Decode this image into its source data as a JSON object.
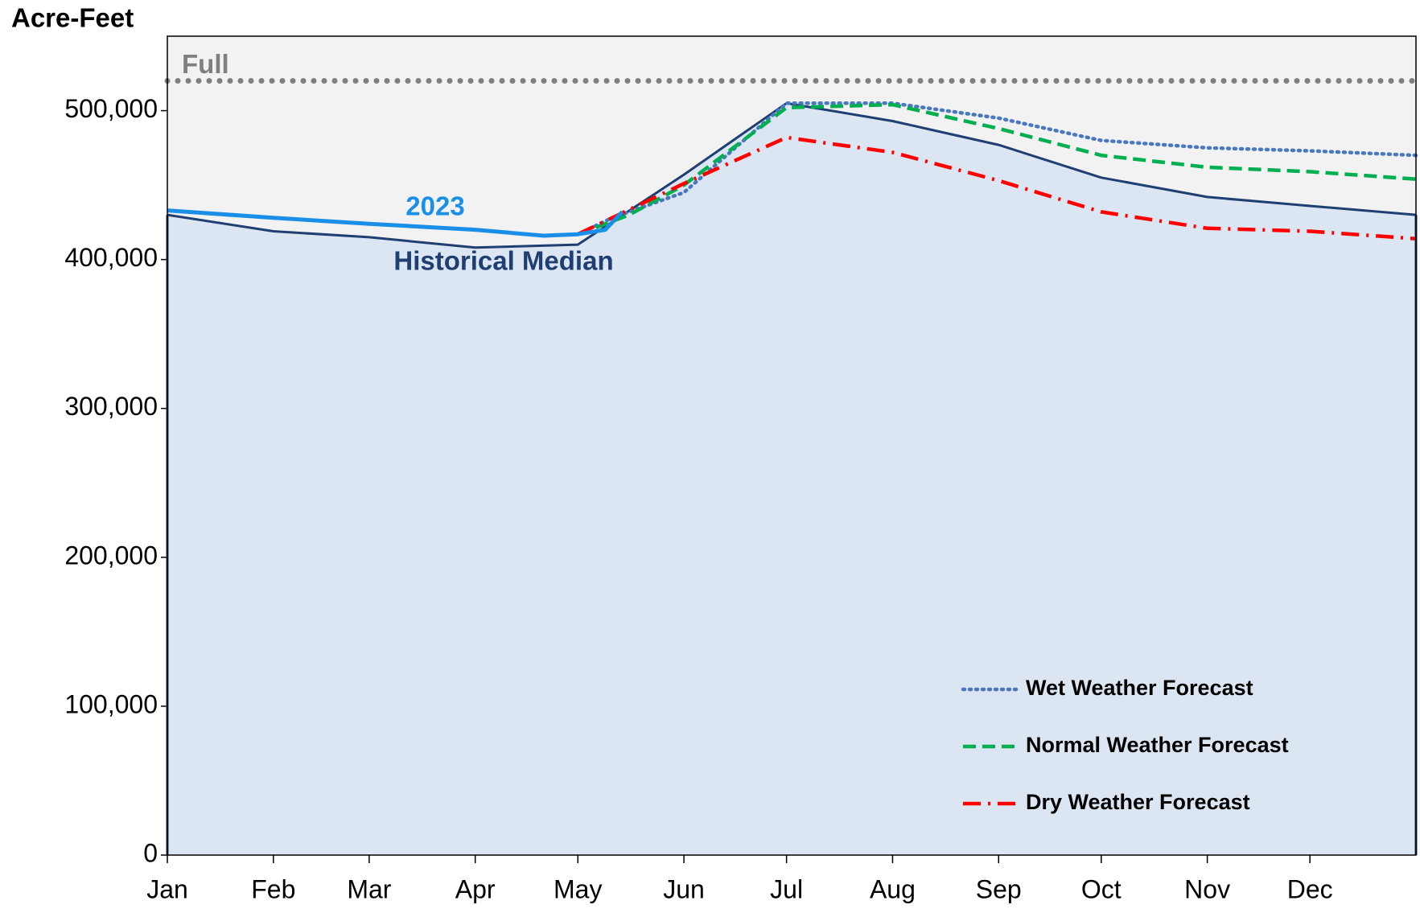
{
  "chart_data": {
    "type": "line",
    "y_label": "Acre-Feet",
    "xlim": [
      0,
      365
    ],
    "xticks": [
      {
        "value": 0,
        "label": "Jan"
      },
      {
        "value": 31,
        "label": "Feb"
      },
      {
        "value": 59,
        "label": "Mar"
      },
      {
        "value": 90,
        "label": "Apr"
      },
      {
        "value": 120,
        "label": "May"
      },
      {
        "value": 151,
        "label": "Jun"
      },
      {
        "value": 181,
        "label": "Jul"
      },
      {
        "value": 212,
        "label": "Aug"
      },
      {
        "value": 243,
        "label": "Sep"
      },
      {
        "value": 273,
        "label": "Oct"
      },
      {
        "value": 304,
        "label": "Nov"
      },
      {
        "value": 334,
        "label": "Dec"
      }
    ],
    "ylim": [
      0,
      550000
    ],
    "yticks": [
      0,
      {
        "value": 100000,
        "label": "100,000"
      },
      {
        "value": 200000,
        "label": "200,000"
      },
      {
        "value": 300000,
        "label": "300,000"
      },
      {
        "value": 400000,
        "label": "400,000"
      },
      {
        "value": 500000,
        "label": "500,000"
      }
    ],
    "plot_background": "#f2f2f2",
    "reference_line": {
      "name": "Full",
      "value": 520000,
      "color": "#7f7f7f"
    },
    "series": [
      {
        "name": "Historical Median",
        "color": "#1f3f73",
        "fill": "#dce6f2",
        "style": "solid",
        "x": [
          0,
          31,
          59,
          90,
          120,
          151,
          181,
          212,
          243,
          273,
          304,
          334,
          365
        ],
        "values": [
          430000,
          419000,
          415000,
          408000,
          410000,
          457000,
          505000,
          493000,
          477000,
          455000,
          442000,
          436000,
          430000
        ]
      },
      {
        "name": "2023",
        "color": "#1a8fe8",
        "style": "solid",
        "x": [
          0,
          31,
          59,
          90,
          110,
          120,
          128,
          133
        ],
        "values": [
          433000,
          428000,
          424000,
          420000,
          416000,
          417000,
          420000,
          432000
        ]
      },
      {
        "name": "Wet Weather Forecast",
        "color": "#4a78c0",
        "style": "dotted",
        "x": [
          120,
          130,
          151,
          181,
          212,
          243,
          273,
          304,
          334,
          365
        ],
        "values": [
          417000,
          428000,
          445000,
          505000,
          505000,
          495000,
          480000,
          475000,
          473000,
          470000
        ]
      },
      {
        "name": "Normal Weather Forecast",
        "color": "#00b050",
        "style": "dashed",
        "x": [
          120,
          135,
          151,
          181,
          212,
          243,
          273,
          304,
          334,
          365
        ],
        "values": [
          417000,
          430000,
          450000,
          502000,
          504000,
          488000,
          470000,
          462000,
          459000,
          454000
        ]
      },
      {
        "name": "Dry Weather Forecast",
        "color": "#ff0000",
        "style": "dashdot",
        "x": [
          120,
          151,
          181,
          212,
          243,
          273,
          304,
          334,
          365
        ],
        "values": [
          417000,
          451000,
          482000,
          472000,
          453000,
          432000,
          421000,
          419000,
          414000
        ]
      }
    ],
    "legend": {
      "series": [
        2,
        3,
        4
      ],
      "position": "lower right"
    }
  }
}
